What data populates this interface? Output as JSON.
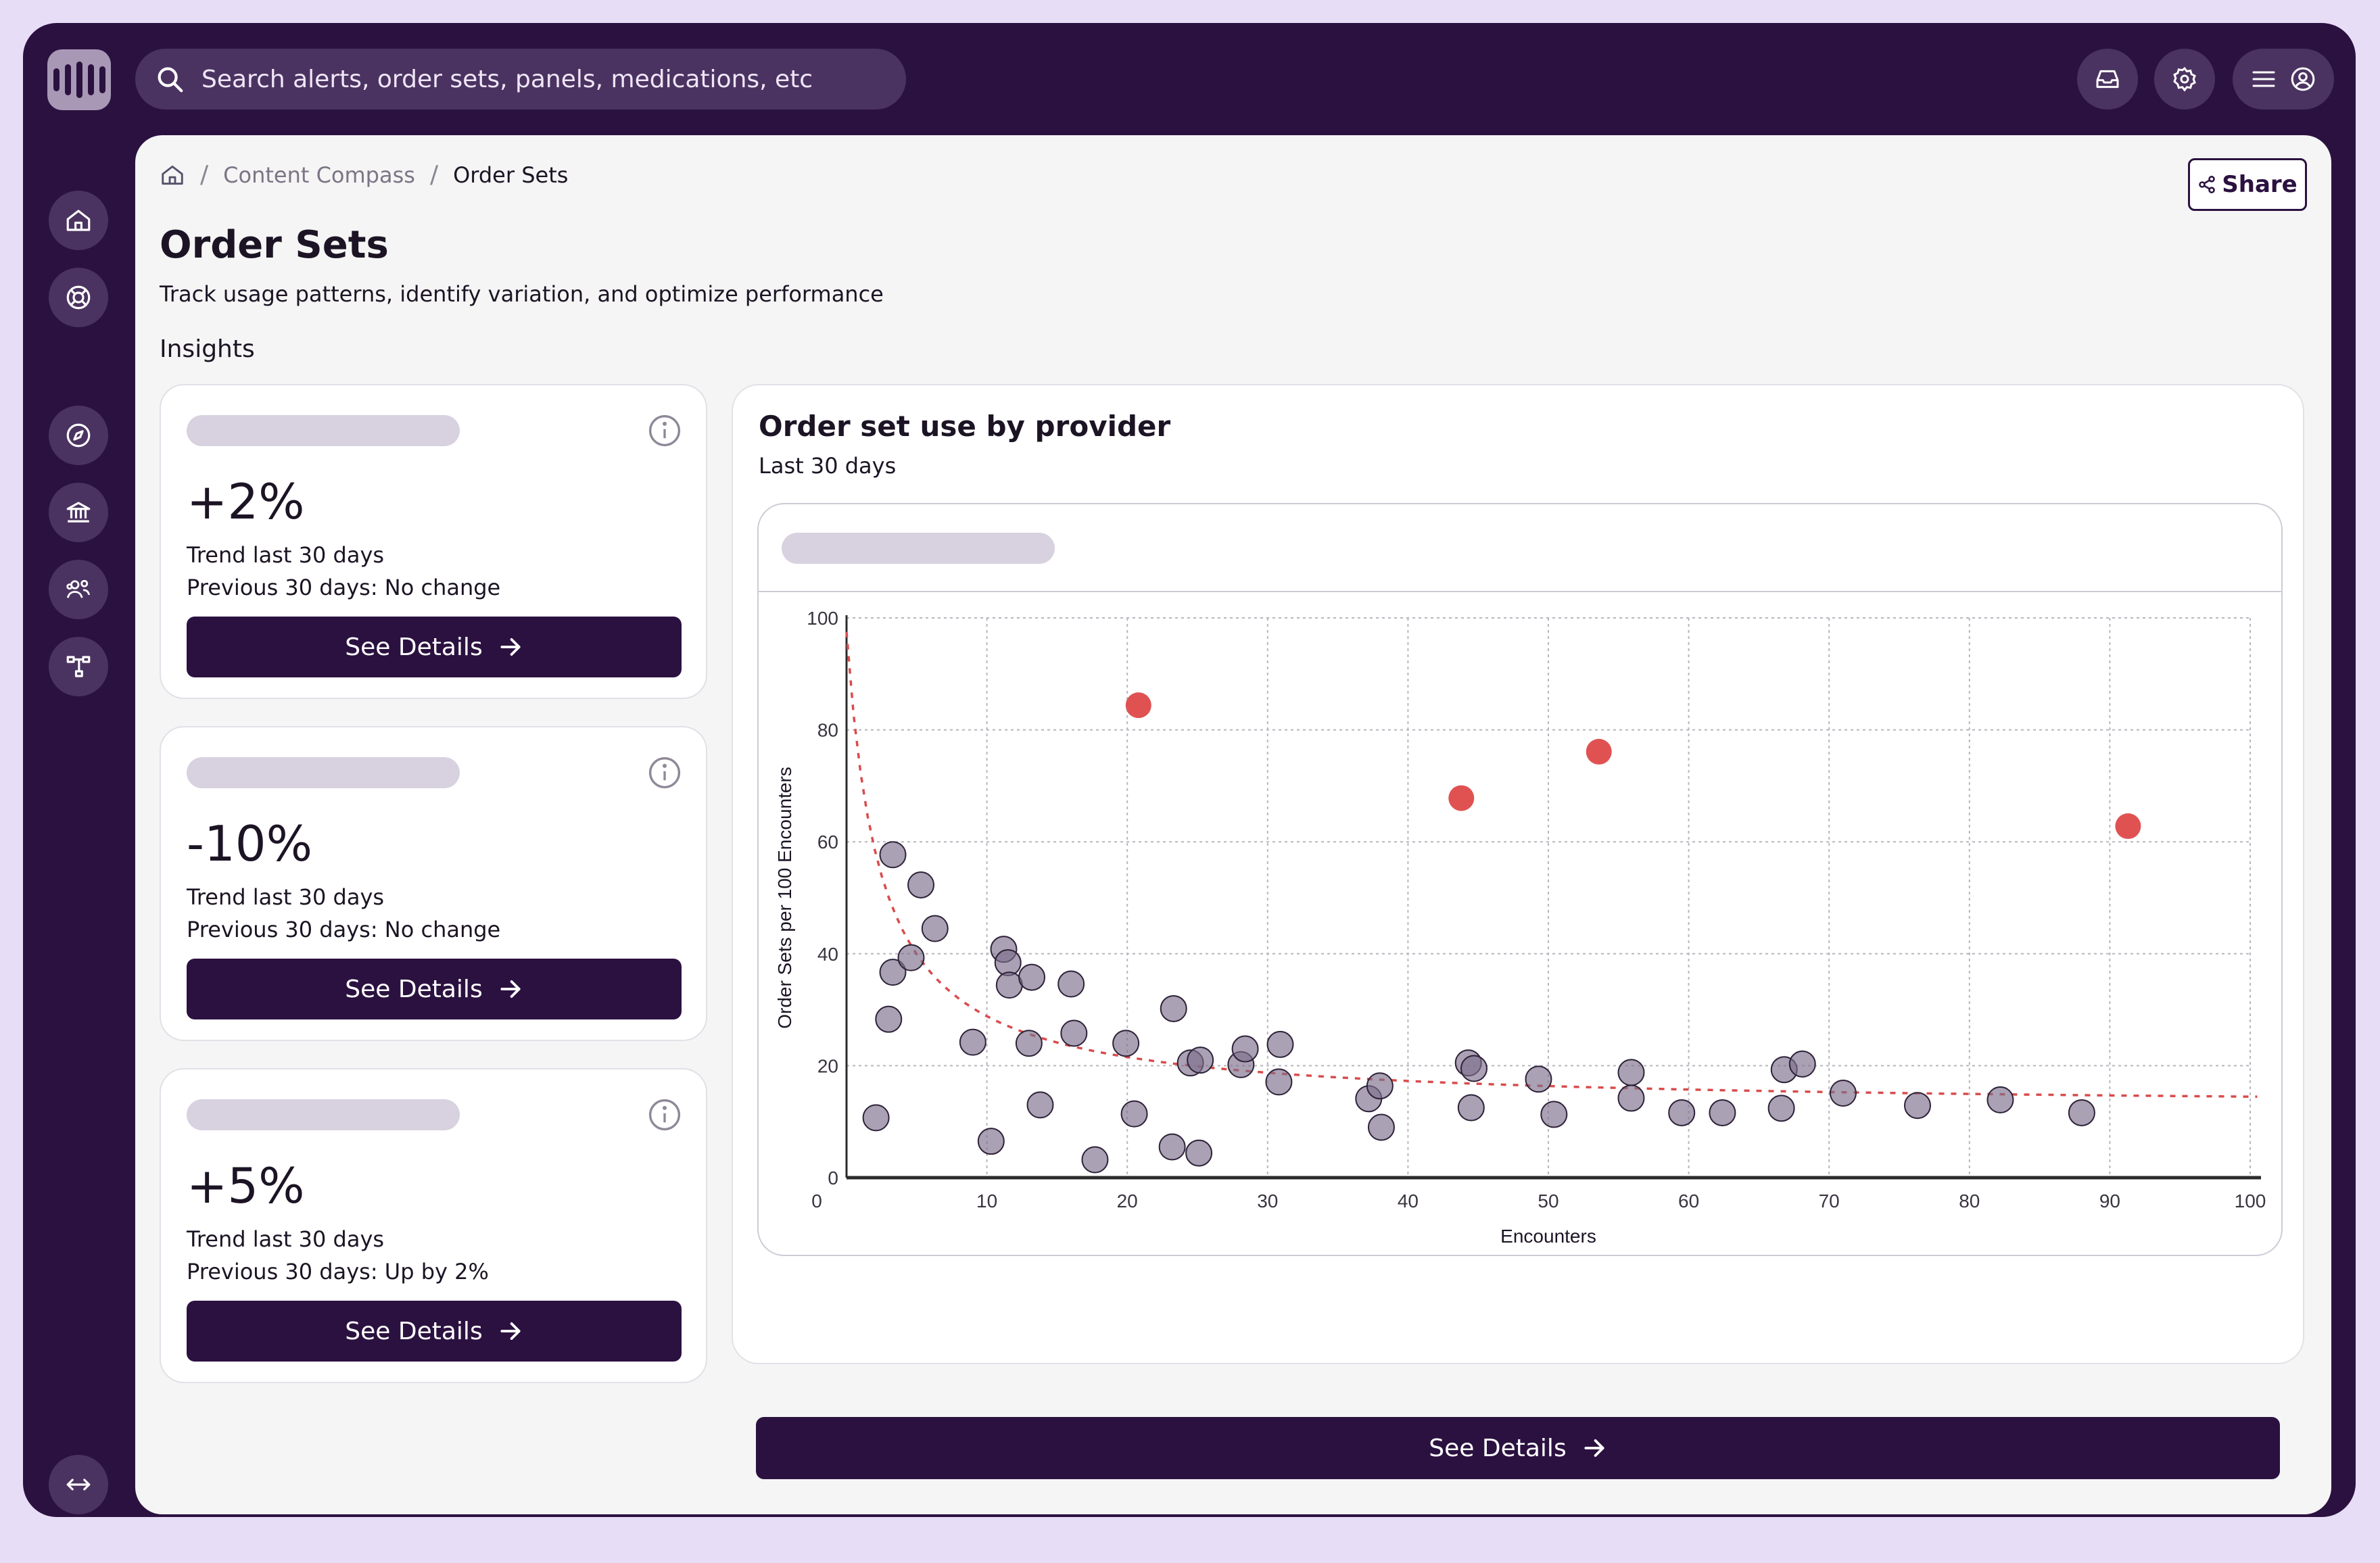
{
  "header": {
    "search_placeholder": "Search alerts, order sets, panels, medications, etc"
  },
  "breadcrumb": {
    "items": [
      "Content Compass",
      "Order Sets"
    ],
    "separator": "/"
  },
  "share_label": "Share",
  "page": {
    "title": "Order Sets",
    "subtitle": "Track usage patterns, identify variation, and optimize performance",
    "section": "Insights"
  },
  "cards": [
    {
      "value": "+2%",
      "trend": "Trend last 30 days",
      "previous": "Previous 30 days: No change",
      "button": "See Details"
    },
    {
      "value": "-10%",
      "trend": "Trend last 30 days",
      "previous": "Previous 30 days: No change",
      "button": "See Details"
    },
    {
      "value": "+5%",
      "trend": "Trend last 30 days",
      "previous": "Previous 30 days: Up by 2%",
      "button": "See Details"
    }
  ],
  "chart_card": {
    "title": "Order set use by provider",
    "subtitle": "Last 30 days",
    "button": "See Details"
  },
  "colors": {
    "brand_dark": "#2b1140",
    "outlier": "#e05252",
    "point": "#7d6f8c",
    "trend": "#d94c4c"
  },
  "icons": [
    "search-icon",
    "inbox-icon",
    "gear-icon",
    "menu-icon",
    "user-icon",
    "home-icon",
    "lifebuoy-icon",
    "compass-icon",
    "bank-icon",
    "users-icon",
    "network-icon",
    "expand-icon",
    "share-icon",
    "info-icon",
    "arrow-right-icon"
  ],
  "chart_data": {
    "type": "scatter",
    "xlabel": "Encounters",
    "ylabel": "Order Sets per 100 Encounters",
    "xlim": [
      0,
      100
    ],
    "ylim": [
      0,
      100
    ],
    "xticks": [
      0,
      10,
      20,
      30,
      40,
      50,
      60,
      70,
      80,
      90,
      100
    ],
    "yticks": [
      0,
      20,
      40,
      60,
      80,
      100
    ],
    "grid": true,
    "series": [
      {
        "role": "normal",
        "points": [
          [
            3.3,
            57.7
          ],
          [
            5.3,
            52.3
          ],
          [
            6.3,
            44.5
          ],
          [
            3.3,
            36.7
          ],
          [
            4.6,
            39.3
          ],
          [
            3.0,
            28.3
          ],
          [
            2.1,
            10.7
          ],
          [
            11.2,
            40.8
          ],
          [
            11.5,
            38.4
          ],
          [
            11.6,
            34.4
          ],
          [
            13.2,
            35.8
          ],
          [
            16.0,
            34.6
          ],
          [
            9.0,
            24.2
          ],
          [
            13.0,
            24.0
          ],
          [
            16.2,
            25.8
          ],
          [
            19.9,
            24.0
          ],
          [
            10.3,
            6.5
          ],
          [
            13.8,
            13.0
          ],
          [
            17.7,
            3.2
          ],
          [
            20.5,
            11.4
          ],
          [
            23.3,
            30.2
          ],
          [
            24.5,
            20.5
          ],
          [
            25.2,
            21.0
          ],
          [
            23.2,
            5.5
          ],
          [
            25.1,
            4.4
          ],
          [
            28.1,
            20.2
          ],
          [
            28.4,
            23.0
          ],
          [
            30.8,
            17.1
          ],
          [
            30.9,
            23.8
          ],
          [
            37.2,
            14.1
          ],
          [
            38.0,
            16.4
          ],
          [
            38.1,
            9.0
          ],
          [
            44.3,
            20.5
          ],
          [
            44.7,
            19.5
          ],
          [
            44.5,
            12.5
          ],
          [
            49.3,
            17.6
          ],
          [
            50.4,
            11.3
          ],
          [
            55.9,
            18.8
          ],
          [
            55.9,
            14.2
          ],
          [
            59.5,
            11.6
          ],
          [
            62.4,
            11.6
          ],
          [
            66.6,
            12.4
          ],
          [
            66.8,
            19.3
          ],
          [
            68.1,
            20.3
          ],
          [
            71.0,
            15.1
          ],
          [
            76.3,
            12.9
          ],
          [
            82.2,
            13.9
          ],
          [
            88.0,
            11.6
          ]
        ]
      },
      {
        "role": "outlier",
        "points": [
          [
            20.8,
            84.4
          ],
          [
            43.8,
            67.8
          ],
          [
            53.6,
            76.1
          ],
          [
            91.3,
            62.8
          ]
        ]
      }
    ],
    "trendline": "dashed curve decreasing from about 96 at x=0 to about 17 at x=100"
  }
}
